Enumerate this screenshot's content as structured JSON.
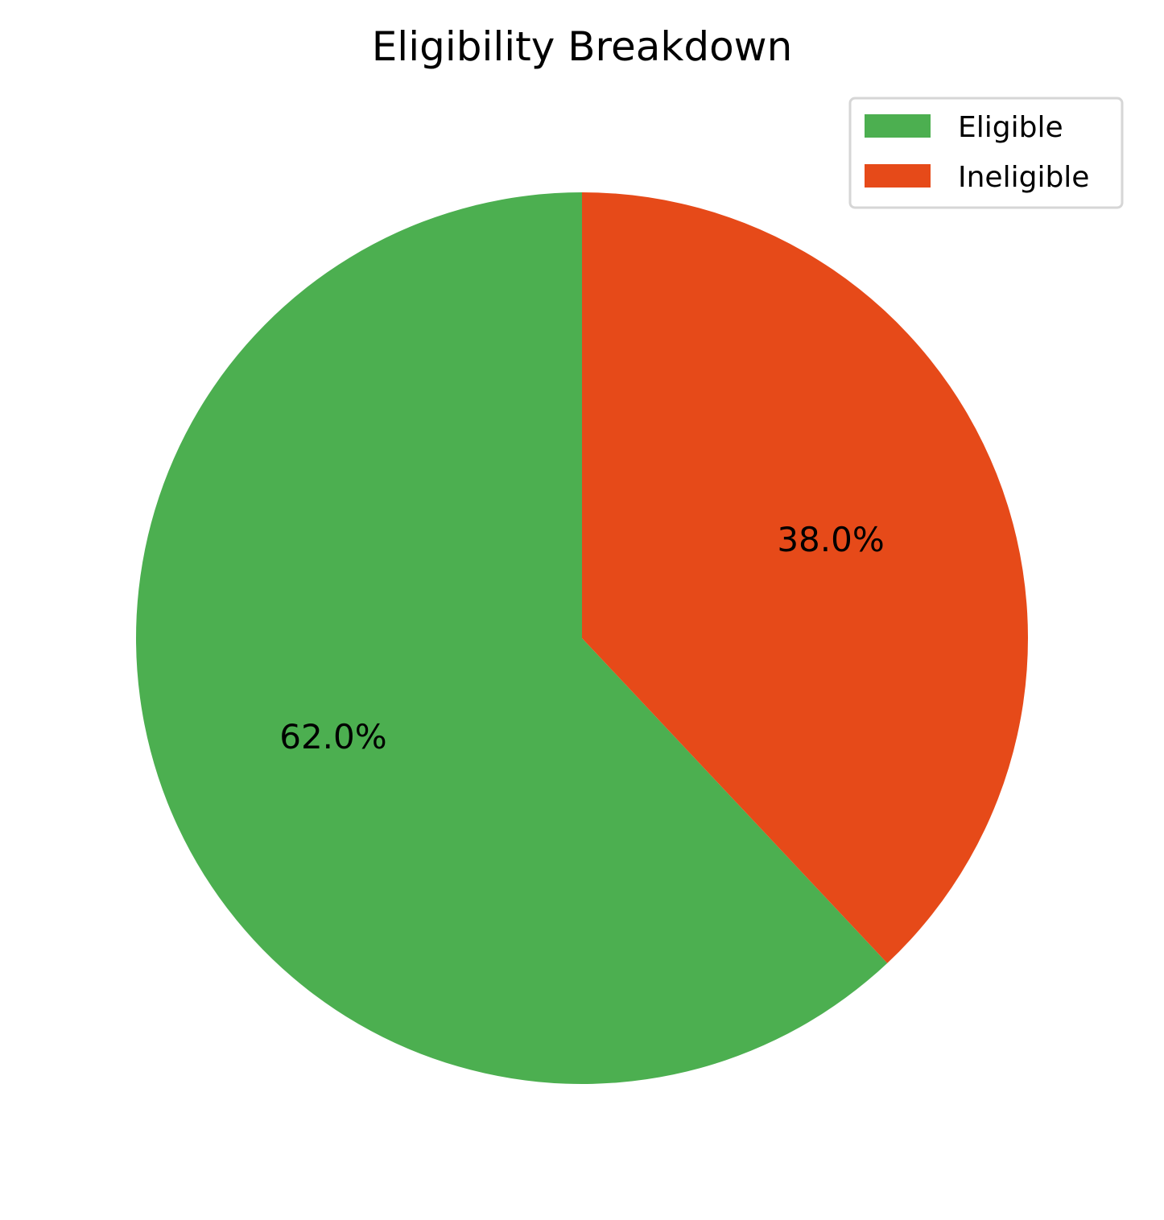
{
  "chart_data": {
    "type": "pie",
    "title": "Eligibility Breakdown",
    "categories": [
      "Eligible",
      "Ineligible"
    ],
    "values": [
      62.0,
      38.0
    ],
    "labels": [
      "62.0%",
      "38.0%"
    ],
    "colors": [
      "#4caf50",
      "#e64a19"
    ],
    "start_angle": "top, counter-clockwise",
    "legend": {
      "placement": "top-right",
      "entries": [
        "Eligible",
        "Ineligible"
      ]
    }
  }
}
